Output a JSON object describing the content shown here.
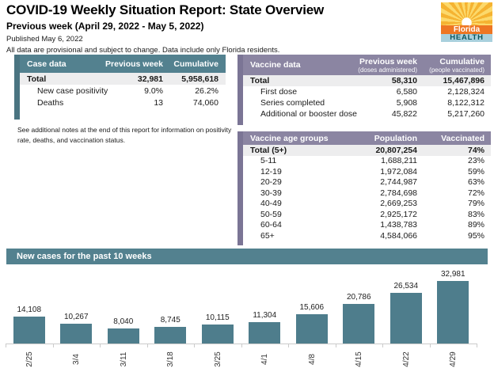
{
  "header": {
    "title": "COVID-19 Weekly Situation Report: State Overview",
    "subtitle": "Previous week (April 29, 2022 - May 5, 2022)",
    "published": "Published May 6, 2022",
    "disclaimer": "All data are provisional and subject to change. Data include only Florida residents.",
    "logo": {
      "line1": "Florida",
      "line2": "HEALTH"
    }
  },
  "case_table": {
    "title": "Case data",
    "col2": "Previous week",
    "col3": "Cumulative",
    "total": {
      "label": "Total",
      "prev": "32,981",
      "cum": "5,958,618"
    },
    "rows": [
      {
        "label": "New case positivity",
        "prev": "9.0%",
        "cum": "26.2%"
      },
      {
        "label": "Deaths",
        "prev": "13",
        "cum": "74,060"
      }
    ]
  },
  "note": "See additional notes at the end of this report for information on positivity rate, deaths, and vaccination status.",
  "vaccine_table": {
    "title": "Vaccine data",
    "col2_main": "Previous week",
    "col2_sub": "(doses administered)",
    "col3_main": "Cumulative",
    "col3_sub": "(people vaccinated)",
    "total": {
      "label": "Total",
      "prev": "58,310",
      "cum": "15,467,896"
    },
    "rows": [
      {
        "label": "First dose",
        "prev": "6,580",
        "cum": "2,128,324"
      },
      {
        "label": "Series completed",
        "prev": "5,908",
        "cum": "8,122,312"
      },
      {
        "label": "Additional or booster dose",
        "prev": "45,822",
        "cum": "5,217,260"
      }
    ]
  },
  "age_table": {
    "title": "Vaccine age groups",
    "col2": "Population",
    "col3": "Vaccinated",
    "total": {
      "label": "Total (5+)",
      "pop": "20,807,254",
      "pct": "74%"
    },
    "rows": [
      {
        "label": "5-11",
        "pop": "1,688,211",
        "pct": "23%"
      },
      {
        "label": "12-19",
        "pop": "1,972,084",
        "pct": "59%"
      },
      {
        "label": "20-29",
        "pop": "2,744,987",
        "pct": "63%"
      },
      {
        "label": "30-39",
        "pop": "2,784,698",
        "pct": "72%"
      },
      {
        "label": "40-49",
        "pop": "2,669,253",
        "pct": "79%"
      },
      {
        "label": "50-59",
        "pop": "2,925,172",
        "pct": "83%"
      },
      {
        "label": "60-64",
        "pop": "1,438,783",
        "pct": "89%"
      },
      {
        "label": "65+",
        "pop": "4,584,066",
        "pct": "95%"
      }
    ]
  },
  "chart_section": {
    "title": "New cases for the past 10 weeks"
  },
  "chart_data": {
    "type": "bar",
    "title": "New cases for the past 10 weeks",
    "categories": [
      "2/25",
      "3/4",
      "3/11",
      "3/18",
      "3/25",
      "4/1",
      "4/8",
      "4/15",
      "4/22",
      "4/29"
    ],
    "values": [
      14108,
      10267,
      8040,
      8745,
      10115,
      11304,
      15606,
      20786,
      26534,
      32981
    ],
    "value_labels": [
      "14,108",
      "10,267",
      "8,040",
      "8,745",
      "10,115",
      "11,304",
      "15,606",
      "20,786",
      "26,534",
      "32,981"
    ],
    "xlabel": "",
    "ylabel": "",
    "ylim": [
      0,
      35000
    ],
    "grid": false,
    "legend": false,
    "bar_color": "#4e7d8c"
  },
  "colors": {
    "teal_header": "#53818f",
    "teal_stripe": "#4a7481",
    "purple_header": "#8b85a2",
    "purple_stripe": "#7b7595",
    "total_row_bg": "#ededee",
    "bar": "#4e7d8c",
    "axis": "#cbcbcb"
  }
}
